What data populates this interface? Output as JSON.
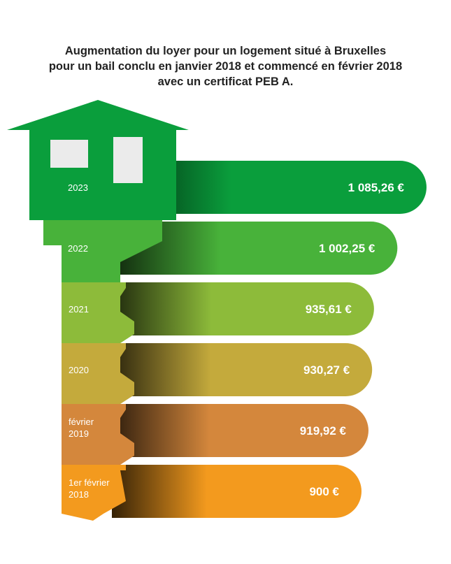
{
  "header": {
    "title_line1": "Augmentation du loyer pour un logement situé à Bruxelles",
    "title_line2": "pour un bail conclu en janvier 2018 et commencé en février 2018",
    "title_line3": "avec un certificat PEB A."
  },
  "chart_data": {
    "type": "bar",
    "title": "Augmentation du loyer pour un logement situé à Bruxelles pour un bail conclu en janvier 2018 et commencé en février 2018 avec un certificat PEB A.",
    "categories": [
      [
        "2023"
      ],
      [
        "2022"
      ],
      [
        "2021"
      ],
      [
        "2020"
      ],
      [
        "février",
        "2019"
      ],
      [
        "1er février",
        "2018"
      ]
    ],
    "series": [
      {
        "values": [
          1085.26,
          1002.25,
          935.61,
          930.27,
          919.92,
          900
        ],
        "labels": [
          "1 085,26 €",
          "1 002,25 €",
          "935,61 €",
          "930,27 €",
          "919,92 €",
          "900 €"
        ]
      }
    ],
    "colors": [
      "#0a9e3c",
      "#48b23a",
      "#8dbb3a",
      "#c4aa3c",
      "#d4873c",
      "#f39a1e"
    ]
  }
}
